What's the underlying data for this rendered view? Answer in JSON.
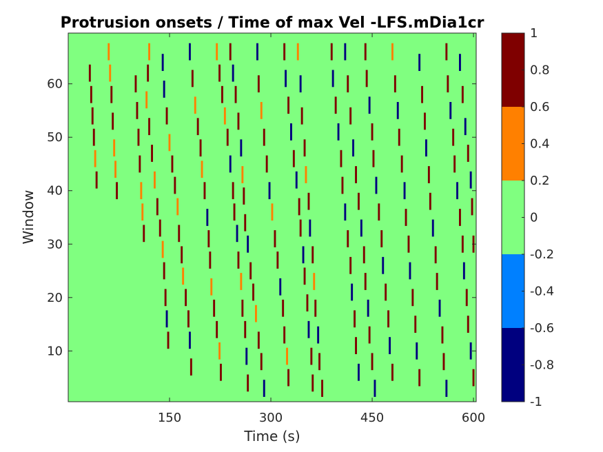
{
  "chart_data": {
    "type": "heatmap",
    "title": "Protrusion onsets / Time of max Vel -LFS.mDia1cr",
    "xlabel": "Time (s)",
    "ylabel": "Window",
    "xlim": [
      0,
      604
    ],
    "ylim": [
      0.5,
      69.5
    ],
    "xticks": [
      150,
      300,
      450,
      600
    ],
    "yticks": [
      10,
      20,
      30,
      40,
      50,
      60
    ],
    "background_value": 0,
    "colorbar": {
      "limits": [
        -1,
        1
      ],
      "ticks": [
        -1,
        -0.8,
        -0.6,
        -0.4,
        -0.2,
        0,
        0.2,
        0.4,
        0.6,
        0.8,
        1
      ],
      "bins": [
        {
          "range": [
            -1,
            -0.6
          ],
          "color": "#00007f"
        },
        {
          "range": [
            -0.6,
            -0.2
          ],
          "color": "#0080ff"
        },
        {
          "range": [
            -0.2,
            0.2
          ],
          "color": "#80ff80"
        },
        {
          "range": [
            0.2,
            0.6
          ],
          "color": "#ff8000"
        },
        {
          "range": [
            0.6,
            1
          ],
          "color": "#7f0000"
        }
      ]
    },
    "series": [
      {
        "values": [
          1,
          0.5,
          -1
        ],
        "color_key": "traces",
        "points": [
          [
            32,
            62,
            1
          ],
          [
            34,
            58,
            1
          ],
          [
            36,
            54,
            1
          ],
          [
            38,
            50,
            1
          ],
          [
            40,
            46,
            0.5
          ],
          [
            42,
            42,
            1
          ],
          [
            60,
            66,
            0.5
          ],
          [
            62,
            62,
            0.5
          ],
          [
            64,
            58,
            1
          ],
          [
            66,
            53,
            1
          ],
          [
            68,
            48,
            0.5
          ],
          [
            70,
            44,
            0.5
          ],
          [
            72,
            40,
            1
          ],
          [
            100,
            60,
            1
          ],
          [
            102,
            55,
            1
          ],
          [
            104,
            50,
            1
          ],
          [
            106,
            45,
            1
          ],
          [
            108,
            40,
            0.5
          ],
          [
            110,
            36,
            0.5
          ],
          [
            112,
            32,
            1
          ],
          [
            120,
            66,
            0.5
          ],
          [
            118,
            62,
            1
          ],
          [
            116,
            57,
            0.5
          ],
          [
            120,
            52,
            1
          ],
          [
            124,
            47,
            1
          ],
          [
            128,
            42,
            0.5
          ],
          [
            132,
            37,
            1
          ],
          [
            136,
            33,
            1
          ],
          [
            140,
            29,
            0.5
          ],
          [
            142,
            25,
            1
          ],
          [
            144,
            20,
            1
          ],
          [
            146,
            16,
            -1
          ],
          [
            148,
            12,
            1
          ],
          [
            140,
            64,
            -1
          ],
          [
            142,
            59,
            -1
          ],
          [
            146,
            54,
            1
          ],
          [
            150,
            49,
            0.5
          ],
          [
            154,
            45,
            1
          ],
          [
            158,
            41,
            1
          ],
          [
            162,
            37,
            0.5
          ],
          [
            164,
            32,
            1
          ],
          [
            168,
            28,
            1
          ],
          [
            170,
            24,
            0.5
          ],
          [
            174,
            20,
            1
          ],
          [
            178,
            16,
            1
          ],
          [
            180,
            12,
            -1
          ],
          [
            182,
            7,
            1
          ],
          [
            180,
            66,
            -1
          ],
          [
            184,
            61,
            1
          ],
          [
            188,
            56,
            0.5
          ],
          [
            192,
            52,
            1
          ],
          [
            196,
            48,
            1
          ],
          [
            198,
            44,
            0.5
          ],
          [
            202,
            40,
            1
          ],
          [
            206,
            35,
            -1
          ],
          [
            208,
            31,
            1
          ],
          [
            210,
            27,
            1
          ],
          [
            212,
            22,
            0.5
          ],
          [
            216,
            18,
            1
          ],
          [
            220,
            14,
            1
          ],
          [
            224,
            10,
            0.5
          ],
          [
            226,
            6,
            1
          ],
          [
            220,
            66,
            0.5
          ],
          [
            224,
            62,
            1
          ],
          [
            228,
            58,
            1
          ],
          [
            232,
            54,
            0.5
          ],
          [
            236,
            50,
            1
          ],
          [
            240,
            45,
            -1
          ],
          [
            244,
            40,
            1
          ],
          [
            246,
            36,
            1
          ],
          [
            250,
            32,
            -1
          ],
          [
            252,
            27,
            1
          ],
          [
            256,
            23,
            0.5
          ],
          [
            258,
            18,
            1
          ],
          [
            262,
            14,
            1
          ],
          [
            264,
            9,
            -1
          ],
          [
            266,
            4,
            1
          ],
          [
            240,
            66,
            1
          ],
          [
            244,
            62,
            -1
          ],
          [
            248,
            58,
            1
          ],
          [
            252,
            53,
            1
          ],
          [
            256,
            48,
            -1
          ],
          [
            258,
            43,
            0.5
          ],
          [
            260,
            39,
            1
          ],
          [
            262,
            34,
            1
          ],
          [
            266,
            30,
            -1
          ],
          [
            270,
            25,
            1
          ],
          [
            274,
            21,
            1
          ],
          [
            278,
            17,
            0.5
          ],
          [
            282,
            12,
            1
          ],
          [
            286,
            8,
            1
          ],
          [
            290,
            3,
            -1
          ],
          [
            280,
            66,
            -1
          ],
          [
            282,
            60,
            1
          ],
          [
            286,
            55,
            0.5
          ],
          [
            290,
            50,
            1
          ],
          [
            294,
            45,
            1
          ],
          [
            298,
            40,
            -1
          ],
          [
            302,
            36,
            0.5
          ],
          [
            306,
            31,
            1
          ],
          [
            310,
            27,
            1
          ],
          [
            314,
            22,
            -1
          ],
          [
            318,
            18,
            1
          ],
          [
            320,
            13,
            1
          ],
          [
            324,
            9,
            0.5
          ],
          [
            326,
            5,
            1
          ],
          [
            320,
            66,
            1
          ],
          [
            322,
            61,
            -1
          ],
          [
            326,
            56,
            1
          ],
          [
            330,
            51,
            -1
          ],
          [
            334,
            46,
            1
          ],
          [
            338,
            42,
            -1
          ],
          [
            342,
            37,
            1
          ],
          [
            344,
            33,
            1
          ],
          [
            348,
            28,
            -1
          ],
          [
            350,
            24,
            1
          ],
          [
            354,
            19,
            1
          ],
          [
            356,
            14,
            -1
          ],
          [
            360,
            9,
            1
          ],
          [
            362,
            4,
            1
          ],
          [
            340,
            66,
            0.5
          ],
          [
            344,
            60,
            -1
          ],
          [
            346,
            54,
            1
          ],
          [
            350,
            48,
            1
          ],
          [
            352,
            43,
            0.5
          ],
          [
            356,
            38,
            1
          ],
          [
            358,
            33,
            -1
          ],
          [
            362,
            28,
            1
          ],
          [
            364,
            23,
            0.5
          ],
          [
            366,
            18,
            1
          ],
          [
            370,
            13,
            -1
          ],
          [
            372,
            8,
            1
          ],
          [
            376,
            3,
            1
          ],
          [
            390,
            66,
            1
          ],
          [
            392,
            61,
            -1
          ],
          [
            396,
            56,
            1
          ],
          [
            400,
            51,
            -1
          ],
          [
            404,
            46,
            1
          ],
          [
            406,
            41,
            1
          ],
          [
            410,
            36,
            -1
          ],
          [
            414,
            31,
            1
          ],
          [
            418,
            26,
            1
          ],
          [
            420,
            21,
            -1
          ],
          [
            424,
            16,
            1
          ],
          [
            426,
            11,
            1
          ],
          [
            430,
            6,
            -1
          ],
          [
            410,
            66,
            -1
          ],
          [
            414,
            60,
            1
          ],
          [
            418,
            54,
            1
          ],
          [
            422,
            48,
            -1
          ],
          [
            426,
            43,
            1
          ],
          [
            430,
            38,
            1
          ],
          [
            434,
            33,
            -1
          ],
          [
            438,
            28,
            1
          ],
          [
            440,
            23,
            1
          ],
          [
            444,
            18,
            -1
          ],
          [
            446,
            13,
            1
          ],
          [
            450,
            8,
            1
          ],
          [
            454,
            3,
            -1
          ],
          [
            440,
            66,
            1
          ],
          [
            442,
            61,
            1
          ],
          [
            446,
            56,
            -1
          ],
          [
            450,
            51,
            1
          ],
          [
            452,
            46,
            1
          ],
          [
            456,
            41,
            -1
          ],
          [
            460,
            36,
            1
          ],
          [
            464,
            31,
            1
          ],
          [
            466,
            26,
            -1
          ],
          [
            470,
            21,
            1
          ],
          [
            474,
            16,
            1
          ],
          [
            476,
            11,
            -1
          ],
          [
            480,
            6,
            1
          ],
          [
            480,
            66,
            0.5
          ],
          [
            484,
            60,
            1
          ],
          [
            488,
            55,
            -1
          ],
          [
            490,
            50,
            1
          ],
          [
            494,
            45,
            1
          ],
          [
            498,
            40,
            -1
          ],
          [
            500,
            35,
            1
          ],
          [
            504,
            30,
            1
          ],
          [
            506,
            25,
            -1
          ],
          [
            510,
            20,
            1
          ],
          [
            514,
            15,
            1
          ],
          [
            516,
            10,
            -1
          ],
          [
            520,
            5,
            1
          ],
          [
            520,
            64,
            -1
          ],
          [
            524,
            58,
            1
          ],
          [
            528,
            53,
            1
          ],
          [
            530,
            48,
            -1
          ],
          [
            534,
            43,
            1
          ],
          [
            536,
            38,
            1
          ],
          [
            540,
            33,
            -1
          ],
          [
            544,
            28,
            1
          ],
          [
            546,
            23,
            1
          ],
          [
            550,
            18,
            -1
          ],
          [
            554,
            13,
            1
          ],
          [
            556,
            8,
            1
          ],
          [
            560,
            3,
            -1
          ],
          [
            560,
            66,
            1
          ],
          [
            562,
            60,
            1
          ],
          [
            566,
            55,
            -1
          ],
          [
            570,
            50,
            1
          ],
          [
            572,
            45,
            1
          ],
          [
            576,
            40,
            -1
          ],
          [
            580,
            35,
            1
          ],
          [
            584,
            30,
            1
          ],
          [
            586,
            25,
            -1
          ],
          [
            590,
            20,
            1
          ],
          [
            592,
            15,
            1
          ],
          [
            596,
            10,
            -1
          ],
          [
            600,
            5,
            1
          ],
          [
            580,
            64,
            -1
          ],
          [
            584,
            58,
            1
          ],
          [
            588,
            52,
            -1
          ],
          [
            592,
            47,
            1
          ],
          [
            596,
            42,
            -1
          ],
          [
            598,
            37,
            1
          ],
          [
            600,
            30,
            1
          ]
        ]
      }
    ]
  }
}
